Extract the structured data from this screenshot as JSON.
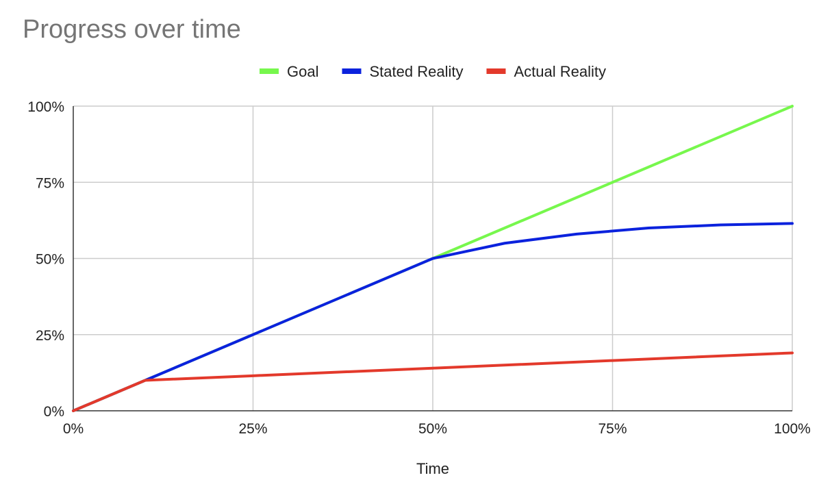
{
  "chart_data": {
    "type": "line",
    "title": "Progress over time",
    "xlabel": "Time",
    "ylabel": "",
    "xlim": [
      0,
      100
    ],
    "ylim": [
      0,
      100
    ],
    "x_ticks": [
      "0%",
      "25%",
      "50%",
      "75%",
      "100%"
    ],
    "y_ticks": [
      "0%",
      "25%",
      "50%",
      "75%",
      "100%"
    ],
    "grid": true,
    "legend_position": "top",
    "series": [
      {
        "name": "Goal",
        "color": "#77f74d",
        "x": [
          0,
          10,
          50,
          100
        ],
        "y": [
          0,
          10,
          50,
          100
        ]
      },
      {
        "name": "Stated Reality",
        "color": "#0b22dd",
        "x": [
          0,
          10,
          25,
          50,
          60,
          70,
          80,
          90,
          100
        ],
        "y": [
          0,
          10,
          25,
          50,
          55,
          58,
          60,
          61,
          61.5
        ]
      },
      {
        "name": "Actual Reality",
        "color": "#e3392b",
        "x": [
          0,
          10,
          25,
          50,
          75,
          100
        ],
        "y": [
          0,
          10,
          11.5,
          14,
          16.5,
          19
        ]
      }
    ]
  }
}
